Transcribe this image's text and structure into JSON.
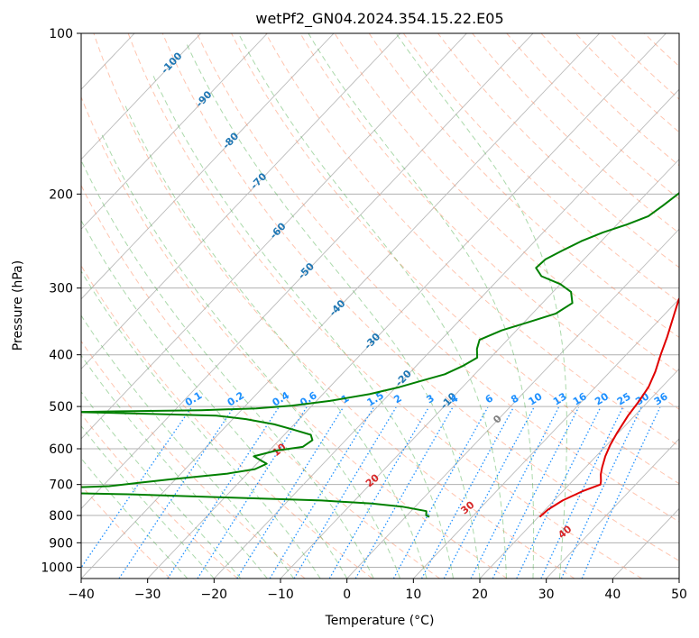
{
  "chart_data": {
    "type": "line",
    "title": "wetPf2_GN04.2024.354.15.22.E05",
    "xlabel": "Temperature (°C)",
    "ylabel": "Pressure (hPa)",
    "xlim": [
      -40,
      50
    ],
    "ylim": [
      1050,
      100
    ],
    "y_scale": "log",
    "grid": true,
    "x_ticks": [
      "−40",
      "−30",
      "−20",
      "−10",
      "0",
      "10",
      "20",
      "30",
      "40",
      "50"
    ],
    "y_ticks": [
      "100",
      "200",
      "300",
      "400",
      "500",
      "600",
      "700",
      "800",
      "900",
      "1000"
    ],
    "series": [
      {
        "role": "temperature",
        "color": "#e00000",
        "points": [
          [
            20.2,
            805
          ],
          [
            20.4,
            780
          ],
          [
            21.3,
            750
          ],
          [
            23.0,
            720
          ],
          [
            24.7,
            700
          ],
          [
            24.3,
            690
          ],
          [
            23.3,
            670
          ],
          [
            22.5,
            650
          ],
          [
            21.4,
            620
          ],
          [
            20.5,
            590
          ],
          [
            19.8,
            560
          ],
          [
            19.0,
            520
          ],
          [
            18.6,
            490
          ],
          [
            18.0,
            460
          ],
          [
            16.8,
            430
          ],
          [
            15.2,
            400
          ],
          [
            13.6,
            370
          ],
          [
            11.7,
            340
          ],
          [
            10.0,
            315
          ],
          [
            9.6,
            300
          ],
          [
            9.5,
            285
          ],
          [
            9.5,
            270
          ],
          [
            9.3,
            255
          ],
          [
            9.0,
            240
          ],
          [
            8.5,
            225
          ],
          [
            7.9,
            210
          ],
          [
            7.0,
            196
          ],
          [
            6.0,
            182
          ],
          [
            4.9,
            170
          ],
          [
            4.0,
            160
          ],
          [
            3.2,
            150
          ],
          [
            2.5,
            140
          ],
          [
            2.1,
            130
          ],
          [
            2.7,
            124
          ],
          [
            4.0,
            118
          ],
          [
            5.2,
            112
          ],
          [
            6.2,
            106
          ],
          [
            7.0,
            100
          ]
        ]
      },
      {
        "role": "dewpoint",
        "color": "#008000",
        "points": [
          [
            3.6,
            805
          ],
          [
            2.9,
            800
          ],
          [
            2.3,
            785
          ],
          [
            -2.0,
            770
          ],
          [
            -7.0,
            760
          ],
          [
            -15.0,
            750
          ],
          [
            -30.0,
            740
          ],
          [
            -45.0,
            730
          ],
          [
            -70.0,
            720
          ],
          [
            -62.0,
            715
          ],
          [
            -49.0,
            705
          ],
          [
            -45.0,
            695
          ],
          [
            -41.0,
            685
          ],
          [
            -33.0,
            668
          ],
          [
            -29.5,
            655
          ],
          [
            -28.5,
            640
          ],
          [
            -31.5,
            620
          ],
          [
            -29.0,
            605
          ],
          [
            -25.5,
            595
          ],
          [
            -25.0,
            578
          ],
          [
            -26.0,
            565
          ],
          [
            -29.5,
            552
          ],
          [
            -33.0,
            540
          ],
          [
            -38.0,
            528
          ],
          [
            -43.0,
            520
          ],
          [
            -56.0,
            515
          ],
          [
            -65.0,
            512
          ],
          [
            -46.0,
            508
          ],
          [
            -38.0,
            504
          ],
          [
            -33.0,
            498
          ],
          [
            -28.0,
            488
          ],
          [
            -23.0,
            474
          ],
          [
            -19.5,
            460
          ],
          [
            -17.0,
            447
          ],
          [
            -14.5,
            435
          ],
          [
            -13.0,
            420
          ],
          [
            -12.0,
            405
          ],
          [
            -13.3,
            390
          ],
          [
            -14.2,
            375
          ],
          [
            -12.2,
            360
          ],
          [
            -9.5,
            348
          ],
          [
            -6.5,
            335
          ],
          [
            -5.5,
            320
          ],
          [
            -7.3,
            305
          ],
          [
            -10.0,
            295
          ],
          [
            -14.0,
            285
          ],
          [
            -16.0,
            275
          ],
          [
            -15.8,
            265
          ],
          [
            -14.5,
            255
          ],
          [
            -13.0,
            245
          ],
          [
            -11.0,
            236
          ],
          [
            -8.5,
            228
          ],
          [
            -6.5,
            220
          ],
          [
            -5.8,
            210
          ],
          [
            -5.2,
            200
          ],
          [
            -4.7,
            190
          ],
          [
            -4.8,
            182
          ],
          [
            -5.5,
            176
          ],
          [
            -5.0,
            170
          ],
          [
            -3.8,
            164
          ],
          [
            -3.9,
            158
          ],
          [
            -4.6,
            153
          ],
          [
            -4.0,
            146
          ],
          [
            -3.4,
            140
          ],
          [
            -3.3,
            133
          ],
          [
            -3.5,
            127
          ],
          [
            -3.0,
            121
          ],
          [
            -2.0,
            115
          ],
          [
            -1.0,
            110
          ],
          [
            0.0,
            105
          ],
          [
            0.5,
            100
          ]
        ]
      }
    ],
    "isotherm_labels": [
      "-100",
      "-90",
      "-80",
      "-70",
      "-60",
      "-50",
      "-40",
      "-30",
      "-20",
      "-10",
      "0"
    ],
    "dry_adiabat_labels": [
      "10",
      "20",
      "30",
      "40"
    ],
    "mixing_ratio_labels": [
      "0.1",
      "0.2",
      "0.4",
      "0.6",
      "1",
      "1.5",
      "2",
      "3",
      "4",
      "6",
      "8",
      "10",
      "13",
      "16",
      "20",
      "25",
      "30",
      "36"
    ],
    "colors": {
      "isotherm_label": "#1f77b4",
      "zero_isotherm_label": "#808080",
      "dry_adiabat": "#ff7f50",
      "dry_adiabat_label": "#d62728",
      "moist_adiabat": "#2ca02c",
      "mixing_ratio": "#1e90ff",
      "skewed_grid": "#bbbbbb",
      "pressure_grid": "#b0b0b0"
    }
  }
}
